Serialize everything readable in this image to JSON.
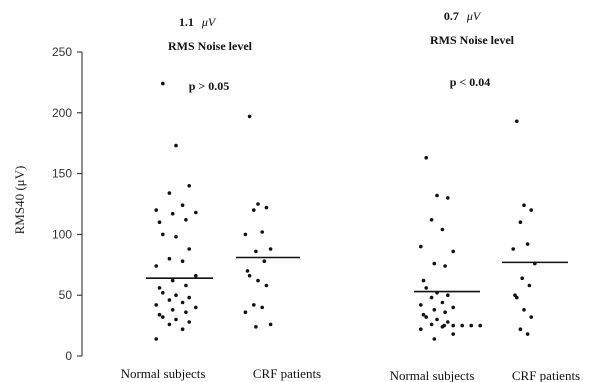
{
  "chart_data": {
    "type": "scatter",
    "ylabel": "RMS40 (μV)",
    "ylim": [
      0,
      250
    ],
    "yticks": [
      0,
      50,
      100,
      150,
      200,
      250
    ],
    "grid": false,
    "groups": [
      {
        "label": "Normal subjects",
        "mean": 64,
        "values": [
          224,
          173,
          140,
          134,
          124,
          120,
          118,
          117,
          112,
          110,
          100,
          98,
          88,
          80,
          78,
          74,
          66,
          62,
          58,
          56,
          52,
          50,
          48,
          46,
          44,
          42,
          40,
          38,
          36,
          34,
          32,
          30,
          28,
          26,
          22,
          14
        ]
      },
      {
        "label": "CRF patients",
        "mean": 81,
        "values": [
          197,
          125,
          122,
          120,
          102,
          100,
          88,
          86,
          78,
          70,
          66,
          62,
          58,
          42,
          40,
          36,
          26,
          24
        ]
      },
      {
        "label": "Normal subjects",
        "mean": 53,
        "values": [
          163,
          132,
          130,
          112,
          104,
          90,
          86,
          76,
          74,
          62,
          56,
          52,
          50,
          48,
          44,
          42,
          40,
          38,
          36,
          34,
          32,
          30,
          28,
          26,
          24,
          22,
          18,
          14,
          25,
          25,
          25,
          25,
          25
        ]
      },
      {
        "label": "CRF patients",
        "mean": 77,
        "values": [
          193,
          124,
          120,
          110,
          92,
          88,
          76,
          64,
          58,
          50,
          48,
          38,
          32,
          22,
          18
        ]
      }
    ],
    "annotations": [
      {
        "noise_value": "1.1",
        "noise_unit": "μV",
        "noise_label": "RMS Noise level",
        "p_text": "p > 0.05"
      },
      {
        "noise_value": "0.7",
        "noise_unit": "μV",
        "noise_label": "RMS Noise level",
        "p_text": "p < 0.04"
      }
    ]
  }
}
